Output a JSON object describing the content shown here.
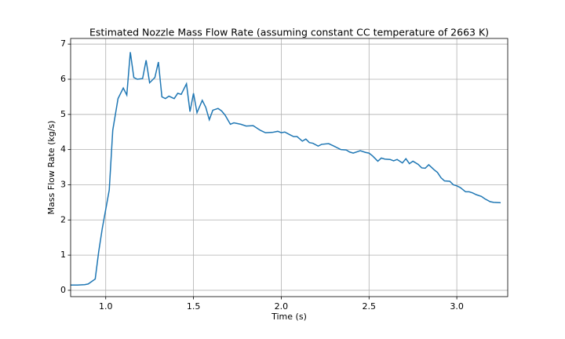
{
  "chart_data": {
    "type": "line",
    "title": "Estimated Nozzle Mass Flow Rate (assuming constant CC temperature of 2663 K)",
    "x_label": "Time (s)",
    "y_label": "Mass Flow Rate (kg/s)",
    "x": [
      0.8,
      0.84,
      0.88,
      0.9,
      0.94,
      0.96,
      0.98,
      1.02,
      1.04,
      1.07,
      1.1,
      1.12,
      1.14,
      1.16,
      1.18,
      1.21,
      1.23,
      1.25,
      1.28,
      1.3,
      1.32,
      1.34,
      1.36,
      1.39,
      1.41,
      1.43,
      1.46,
      1.48,
      1.5,
      1.52,
      1.55,
      1.57,
      1.59,
      1.61,
      1.64,
      1.66,
      1.68,
      1.71,
      1.73,
      1.77,
      1.8,
      1.84,
      1.88,
      1.91,
      1.95,
      1.98,
      2.0,
      2.02,
      2.05,
      2.07,
      2.09,
      2.12,
      2.14,
      2.16,
      2.18,
      2.21,
      2.23,
      2.27,
      2.3,
      2.34,
      2.37,
      2.39,
      2.41,
      2.45,
      2.48,
      2.5,
      2.52,
      2.55,
      2.57,
      2.59,
      2.62,
      2.64,
      2.66,
      2.69,
      2.71,
      2.73,
      2.75,
      2.78,
      2.8,
      2.82,
      2.84,
      2.87,
      2.89,
      2.91,
      2.93,
      2.96,
      2.98,
      3.0,
      3.02,
      3.05,
      3.07,
      3.09,
      3.11,
      3.14,
      3.16,
      3.19,
      3.21,
      3.25
    ],
    "series": [
      {
        "name": "Mass Flow Rate",
        "color": "#1f77b4",
        "values": [
          0.15,
          0.15,
          0.16,
          0.18,
          0.32,
          1.1,
          1.75,
          2.85,
          4.55,
          5.45,
          5.75,
          5.55,
          6.77,
          6.05,
          6.0,
          6.02,
          6.54,
          5.9,
          6.05,
          6.49,
          5.5,
          5.45,
          5.52,
          5.45,
          5.6,
          5.57,
          5.87,
          5.08,
          5.6,
          5.05,
          5.4,
          5.2,
          4.85,
          5.12,
          5.17,
          5.1,
          4.98,
          4.72,
          4.76,
          4.72,
          4.67,
          4.68,
          4.55,
          4.48,
          4.49,
          4.52,
          4.48,
          4.5,
          4.42,
          4.37,
          4.37,
          4.24,
          4.3,
          4.2,
          4.18,
          4.1,
          4.15,
          4.17,
          4.1,
          4.0,
          3.99,
          3.93,
          3.9,
          3.97,
          3.92,
          3.9,
          3.82,
          3.67,
          3.76,
          3.73,
          3.72,
          3.68,
          3.72,
          3.62,
          3.74,
          3.6,
          3.67,
          3.58,
          3.48,
          3.47,
          3.57,
          3.43,
          3.35,
          3.2,
          3.11,
          3.1,
          3.0,
          2.97,
          2.92,
          2.8,
          2.8,
          2.77,
          2.72,
          2.67,
          2.6,
          2.52,
          2.5,
          2.49
        ]
      }
    ],
    "xlim": [
      0.8,
      3.29
    ],
    "ylim": [
      -0.18,
      7.16
    ],
    "xticks": [
      {
        "value": 1.0,
        "label": "1.0"
      },
      {
        "value": 1.5,
        "label": "1.5"
      },
      {
        "value": 2.0,
        "label": "2.0"
      },
      {
        "value": 2.5,
        "label": "2.5"
      },
      {
        "value": 3.0,
        "label": "3.0"
      }
    ],
    "yticks": [
      0,
      1,
      2,
      3,
      4,
      5,
      6,
      7
    ],
    "grid": true
  }
}
